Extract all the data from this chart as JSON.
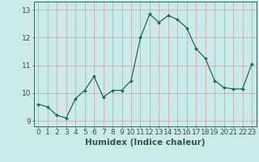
{
  "xlabel": "Humidex (Indice chaleur)",
  "x": [
    0,
    1,
    2,
    3,
    4,
    5,
    6,
    7,
    8,
    9,
    10,
    11,
    12,
    13,
    14,
    15,
    16,
    17,
    18,
    19,
    20,
    21,
    22,
    23
  ],
  "y": [
    9.6,
    9.5,
    9.2,
    9.1,
    9.8,
    10.1,
    10.6,
    9.85,
    10.1,
    10.1,
    10.45,
    12.0,
    12.85,
    12.55,
    12.8,
    12.65,
    12.35,
    11.6,
    11.25,
    10.45,
    10.2,
    10.15,
    10.15,
    11.05
  ],
  "line_color": "#1a6b5a",
  "marker": "D",
  "marker_size": 2.0,
  "bg_color": "#cceaea",
  "grid_color": "#c8a0a0",
  "axis_color": "#2d6b5a",
  "tick_color": "#2d5a4a",
  "ylim": [
    8.8,
    13.3
  ],
  "xlim": [
    -0.5,
    23.5
  ],
  "yticks": [
    9,
    10,
    11,
    12,
    13
  ],
  "xticks": [
    0,
    1,
    2,
    3,
    4,
    5,
    6,
    7,
    8,
    9,
    10,
    11,
    12,
    13,
    14,
    15,
    16,
    17,
    18,
    19,
    20,
    21,
    22,
    23
  ],
  "tick_fontsize": 6.5,
  "label_fontsize": 7.5
}
